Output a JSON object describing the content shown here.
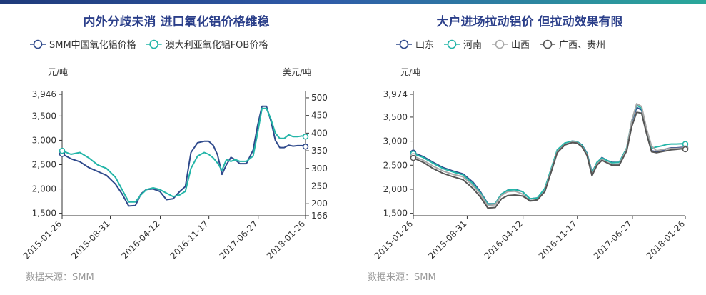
{
  "source_label": "数据来源：SMM",
  "colors": {
    "navy": "#2f4a8c",
    "teal": "#23b5a8",
    "lightgray": "#a8a8a8",
    "darkgray": "#555555",
    "title": "#2b3f8a"
  },
  "chart_data": [
    {
      "type": "line",
      "title": "内外分歧未消 进口氧化铝价格维稳",
      "xlabel": "",
      "ylabel": "元/吨",
      "y2label": "美元/吨",
      "ylim": [
        1450,
        3946
      ],
      "y2lim": [
        166,
        510
      ],
      "y_ticks": [
        "1,500",
        "2,000",
        "2,500",
        "3,000",
        "3,500",
        "3,946"
      ],
      "y_tick_values": [
        1500,
        2000,
        2500,
        3000,
        3500,
        3946
      ],
      "y2_ticks": [
        "166",
        "200",
        "250",
        "300",
        "350",
        "400",
        "450",
        "500"
      ],
      "y2_tick_values": [
        166,
        200,
        250,
        300,
        350,
        400,
        450,
        500
      ],
      "x_ticks": [
        "2015-01-26",
        "2015-08-31",
        "2016-04-12",
        "2016-11-17",
        "2017-06-27",
        "2018-01-26"
      ],
      "x_tick_values": [
        0,
        217,
        442,
        661,
        883,
        1096
      ],
      "series": [
        {
          "name": "SMM中国氧化铝价格",
          "axis": "left",
          "color": "#2f4a8c",
          "x": [
            0,
            40,
            80,
            120,
            160,
            200,
            240,
            270,
            300,
            330,
            355,
            380,
            410,
            440,
            470,
            500,
            530,
            555,
            580,
            610,
            640,
            660,
            680,
            700,
            720,
            740,
            760,
            780,
            800,
            830,
            860,
            880,
            900,
            920,
            940,
            960,
            980,
            1000,
            1020,
            1040,
            1060,
            1080,
            1096
          ],
          "y": [
            2720,
            2620,
            2560,
            2440,
            2360,
            2280,
            2100,
            1900,
            1650,
            1660,
            1900,
            1990,
            2000,
            1950,
            1780,
            1800,
            1950,
            2050,
            2750,
            2950,
            2980,
            2980,
            2900,
            2700,
            2300,
            2500,
            2650,
            2600,
            2520,
            2520,
            2800,
            3300,
            3700,
            3700,
            3400,
            3000,
            2850,
            2850,
            2900,
            2880,
            2890,
            2890,
            2870
          ]
        },
        {
          "name": "澳大利亚氧化铝FOB价格",
          "axis": "right",
          "color": "#23b5a8",
          "x": [
            0,
            40,
            80,
            120,
            160,
            200,
            240,
            270,
            300,
            330,
            355,
            380,
            410,
            440,
            470,
            500,
            530,
            555,
            580,
            610,
            640,
            660,
            680,
            700,
            720,
            740,
            760,
            780,
            800,
            830,
            860,
            880,
            900,
            920,
            940,
            960,
            980,
            1000,
            1020,
            1040,
            1060,
            1080,
            1096
          ],
          "y": [
            350,
            340,
            345,
            330,
            310,
            300,
            275,
            240,
            205,
            205,
            225,
            240,
            245,
            240,
            230,
            220,
            225,
            235,
            300,
            335,
            345,
            340,
            330,
            315,
            295,
            325,
            320,
            325,
            320,
            320,
            335,
            400,
            470,
            470,
            440,
            400,
            385,
            385,
            395,
            390,
            390,
            392,
            390
          ]
        }
      ]
    },
    {
      "type": "line",
      "title": "大户进场拉动铝价 但拉动效果有限",
      "xlabel": "",
      "ylabel": "元/吨",
      "ylim": [
        1450,
        3974
      ],
      "y_ticks": [
        "1,500",
        "2,000",
        "2,500",
        "3,000",
        "3,500",
        "3,974"
      ],
      "y_tick_values": [
        1500,
        2000,
        2500,
        3000,
        3500,
        3974
      ],
      "x_ticks": [
        "2015-01-26",
        "2015-08-31",
        "2016-04-12",
        "2016-11-17",
        "2017-06-27",
        "2018-01-26"
      ],
      "x_tick_values": [
        0,
        217,
        442,
        661,
        883,
        1096
      ],
      "series": [
        {
          "name": "山东",
          "color": "#2f4a8c",
          "x": [
            0,
            40,
            80,
            120,
            160,
            200,
            240,
            270,
            300,
            330,
            355,
            380,
            410,
            440,
            470,
            500,
            530,
            555,
            580,
            610,
            640,
            660,
            680,
            700,
            720,
            740,
            760,
            780,
            800,
            830,
            860,
            880,
            900,
            920,
            940,
            960,
            980,
            1000,
            1020,
            1040,
            1060,
            1080,
            1096
          ],
          "y": [
            2760,
            2680,
            2560,
            2450,
            2380,
            2320,
            2150,
            1950,
            1700,
            1700,
            1900,
            1980,
            2000,
            1950,
            1800,
            1820,
            2000,
            2400,
            2800,
            2950,
            3000,
            2990,
            2920,
            2750,
            2350,
            2550,
            2660,
            2600,
            2560,
            2560,
            2850,
            3400,
            3700,
            3650,
            3200,
            2800,
            2780,
            2800,
            2840,
            2860,
            2860,
            2870,
            2860
          ]
        },
        {
          "name": "河南",
          "color": "#23b5a8",
          "x": [
            0,
            40,
            80,
            120,
            160,
            200,
            240,
            270,
            300,
            330,
            355,
            380,
            410,
            440,
            470,
            500,
            530,
            555,
            580,
            610,
            640,
            660,
            680,
            700,
            720,
            740,
            760,
            780,
            800,
            830,
            860,
            880,
            900,
            920,
            940,
            960,
            980,
            1000,
            1020,
            1040,
            1060,
            1080,
            1096
          ],
          "y": [
            2740,
            2660,
            2540,
            2430,
            2360,
            2300,
            2120,
            1930,
            1690,
            1700,
            1900,
            1980,
            1990,
            1950,
            1800,
            1820,
            2020,
            2420,
            2820,
            2960,
            3000,
            2990,
            2910,
            2740,
            2330,
            2560,
            2650,
            2600,
            2550,
            2560,
            2860,
            3420,
            3750,
            3680,
            3200,
            2850,
            2880,
            2900,
            2930,
            2940,
            2940,
            2945,
            2940
          ]
        },
        {
          "name": "山西",
          "color": "#a8a8a8",
          "x": [
            0,
            40,
            80,
            120,
            160,
            200,
            240,
            270,
            300,
            330,
            355,
            380,
            410,
            440,
            470,
            500,
            530,
            555,
            580,
            610,
            640,
            660,
            680,
            700,
            720,
            740,
            760,
            780,
            800,
            830,
            860,
            880,
            900,
            920,
            940,
            960,
            980,
            1000,
            1020,
            1040,
            1060,
            1080,
            1096
          ],
          "y": [
            2690,
            2600,
            2480,
            2380,
            2310,
            2260,
            2080,
            1900,
            1660,
            1680,
            1870,
            1950,
            1960,
            1900,
            1750,
            1780,
            1970,
            2380,
            2780,
            2930,
            2980,
            2970,
            2890,
            2720,
            2300,
            2520,
            2620,
            2560,
            2520,
            2520,
            2840,
            3420,
            3780,
            3720,
            3250,
            2900,
            2800,
            2820,
            2840,
            2850,
            2850,
            2855,
            2850
          ]
        },
        {
          "name": "广西、贵州",
          "color": "#555555",
          "x": [
            0,
            40,
            80,
            120,
            160,
            200,
            240,
            270,
            300,
            330,
            355,
            380,
            410,
            440,
            470,
            500,
            530,
            555,
            580,
            610,
            640,
            660,
            680,
            700,
            720,
            740,
            760,
            780,
            800,
            830,
            860,
            880,
            900,
            920,
            940,
            960,
            980,
            1000,
            1020,
            1040,
            1060,
            1080,
            1096
          ],
          "y": [
            2650,
            2560,
            2430,
            2330,
            2260,
            2200,
            2020,
            1840,
            1610,
            1620,
            1800,
            1870,
            1880,
            1860,
            1760,
            1780,
            1950,
            2350,
            2760,
            2920,
            2970,
            2960,
            2880,
            2700,
            2280,
            2500,
            2600,
            2550,
            2500,
            2500,
            2800,
            3300,
            3600,
            3580,
            3150,
            2780,
            2760,
            2780,
            2800,
            2820,
            2830,
            2840,
            2830
          ]
        }
      ]
    }
  ]
}
